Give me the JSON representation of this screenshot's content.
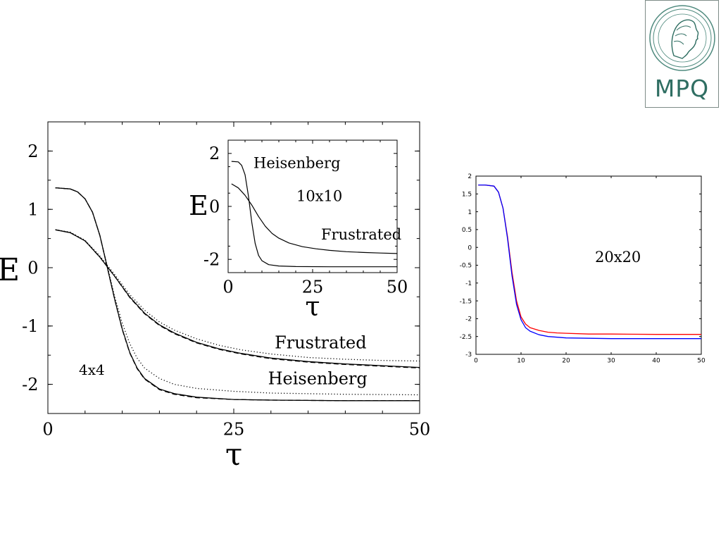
{
  "logo": {
    "text": "MPQ",
    "color": "#2f6e62",
    "icon": "minerva-head-seal-icon"
  },
  "chart_data": [
    {
      "id": "main",
      "type": "line",
      "annotation": "4x4",
      "xlabel": "τ",
      "ylabel": "E",
      "xlim": [
        0,
        50
      ],
      "ylim": [
        -2.5,
        2.5
      ],
      "xticks": [
        0,
        25,
        50
      ],
      "yticks": [
        2,
        1,
        0,
        -1,
        -2
      ],
      "grid": false,
      "series": [
        {
          "name": "Frustrated",
          "style": "solid",
          "x": [
            1,
            3,
            5,
            7,
            9,
            11,
            13,
            15,
            17,
            20,
            23,
            26,
            30,
            35,
            40,
            45,
            50
          ],
          "y": [
            0.65,
            0.6,
            0.46,
            0.18,
            -0.15,
            -0.5,
            -0.78,
            -0.98,
            -1.12,
            -1.28,
            -1.39,
            -1.47,
            -1.55,
            -1.61,
            -1.65,
            -1.68,
            -1.71
          ]
        },
        {
          "style": "dashed",
          "x": [
            1,
            3,
            5,
            7,
            9,
            11,
            13,
            15,
            17,
            20,
            23,
            26,
            30,
            35,
            40,
            45,
            50
          ],
          "y": [
            0.65,
            0.6,
            0.46,
            0.18,
            -0.15,
            -0.51,
            -0.79,
            -0.99,
            -1.13,
            -1.29,
            -1.4,
            -1.48,
            -1.56,
            -1.62,
            -1.66,
            -1.69,
            -1.72
          ]
        },
        {
          "style": "dotted",
          "x": [
            1,
            3,
            5,
            7,
            9,
            11,
            13,
            15,
            17,
            20,
            23,
            26,
            30,
            35,
            40,
            45,
            50
          ],
          "y": [
            0.65,
            0.61,
            0.47,
            0.2,
            -0.12,
            -0.46,
            -0.73,
            -0.93,
            -1.07,
            -1.22,
            -1.33,
            -1.41,
            -1.48,
            -1.54,
            -1.57,
            -1.59,
            -1.6
          ]
        },
        {
          "name": "Heisenberg",
          "style": "solid",
          "x": [
            1,
            3,
            4,
            5,
            6,
            7,
            8,
            9,
            10,
            11,
            12,
            13,
            15,
            17,
            20,
            25,
            30,
            40,
            50
          ],
          "y": [
            1.37,
            1.35,
            1.3,
            1.18,
            0.95,
            0.55,
            0.0,
            -0.55,
            -1.05,
            -1.45,
            -1.72,
            -1.9,
            -2.08,
            -2.16,
            -2.22,
            -2.26,
            -2.27,
            -2.28,
            -2.28
          ]
        },
        {
          "style": "dashed",
          "x": [
            1,
            3,
            4,
            5,
            6,
            7,
            8,
            9,
            10,
            11,
            12,
            13,
            15,
            17,
            20,
            25,
            30,
            40,
            50
          ],
          "y": [
            1.37,
            1.35,
            1.3,
            1.18,
            0.95,
            0.55,
            0.0,
            -0.55,
            -1.06,
            -1.46,
            -1.73,
            -1.91,
            -2.09,
            -2.17,
            -2.23,
            -2.26,
            -2.27,
            -2.28,
            -2.28
          ]
        },
        {
          "style": "dotted",
          "x": [
            1,
            3,
            4,
            5,
            6,
            7,
            8,
            9,
            10,
            11,
            12,
            13,
            15,
            17,
            20,
            25,
            30,
            40,
            50
          ],
          "y": [
            1.37,
            1.35,
            1.3,
            1.18,
            0.95,
            0.55,
            0.02,
            -0.5,
            -0.95,
            -1.3,
            -1.55,
            -1.72,
            -1.9,
            -2.0,
            -2.07,
            -2.12,
            -2.15,
            -2.17,
            -2.18
          ]
        }
      ],
      "labels": [
        {
          "text": "Frustrated",
          "x": 30.5,
          "y": -1.38
        },
        {
          "text": "Heisenberg",
          "x": 29.6,
          "y": -2.0
        }
      ]
    },
    {
      "id": "inset",
      "type": "line",
      "annotation": "10x10",
      "xlabel": "τ",
      "ylabel": "E",
      "xlim": [
        0,
        50
      ],
      "ylim": [
        -2.5,
        2.5
      ],
      "xticks": [
        0,
        25,
        50
      ],
      "yticks": [
        2,
        0,
        -2
      ],
      "series": [
        {
          "name": "Heisenberg",
          "style": "solid",
          "x": [
            1,
            3,
            4,
            5,
            6,
            7,
            8,
            9,
            10,
            12,
            15,
            20,
            30,
            50
          ],
          "y": [
            1.7,
            1.68,
            1.55,
            1.2,
            0.4,
            -0.6,
            -1.4,
            -1.85,
            -2.05,
            -2.2,
            -2.25,
            -2.27,
            -2.28,
            -2.28
          ]
        },
        {
          "name": "Frustrated",
          "style": "solid",
          "x": [
            1,
            3,
            5,
            7,
            9,
            11,
            13,
            15,
            18,
            22,
            26,
            30,
            35,
            40,
            45,
            50
          ],
          "y": [
            0.85,
            0.7,
            0.42,
            0.05,
            -0.38,
            -0.75,
            -1.02,
            -1.2,
            -1.38,
            -1.52,
            -1.6,
            -1.66,
            -1.71,
            -1.74,
            -1.76,
            -1.78
          ]
        }
      ],
      "labels": [
        {
          "text": "Heisenberg",
          "x": 7.5,
          "y": 1.45
        },
        {
          "text": "10x10",
          "x": 20.2,
          "y": 0.2
        },
        {
          "text": "Frustrated",
          "x": 27.5,
          "y": -1.25
        }
      ]
    },
    {
      "id": "right",
      "type": "line",
      "annotation": "20x20",
      "xlim": [
        0,
        50
      ],
      "ylim": [
        -3,
        2
      ],
      "xticks": [
        0,
        10,
        20,
        30,
        40,
        50
      ],
      "yticks": [
        2,
        1.5,
        1,
        0.5,
        0,
        -0.5,
        -1,
        -1.5,
        -2,
        -2.5,
        -3
      ],
      "series": [
        {
          "color": "#ff0000",
          "x": [
            0.5,
            2,
            4,
            5,
            6,
            7,
            8,
            9,
            10,
            11,
            12,
            14,
            16,
            18,
            20,
            25,
            30,
            40,
            50
          ],
          "y": [
            1.75,
            1.75,
            1.72,
            1.55,
            1.1,
            0.3,
            -0.7,
            -1.5,
            -1.95,
            -2.15,
            -2.25,
            -2.33,
            -2.38,
            -2.4,
            -2.41,
            -2.43,
            -2.43,
            -2.44,
            -2.44
          ]
        },
        {
          "color": "#0000ff",
          "x": [
            0.5,
            2,
            4,
            5,
            6,
            7,
            8,
            9,
            10,
            11,
            12,
            14,
            16,
            18,
            20,
            25,
            30,
            40,
            50
          ],
          "y": [
            1.75,
            1.75,
            1.72,
            1.55,
            1.1,
            0.25,
            -0.8,
            -1.6,
            -2.03,
            -2.25,
            -2.35,
            -2.45,
            -2.5,
            -2.52,
            -2.54,
            -2.55,
            -2.56,
            -2.56,
            -2.56
          ]
        }
      ]
    }
  ]
}
